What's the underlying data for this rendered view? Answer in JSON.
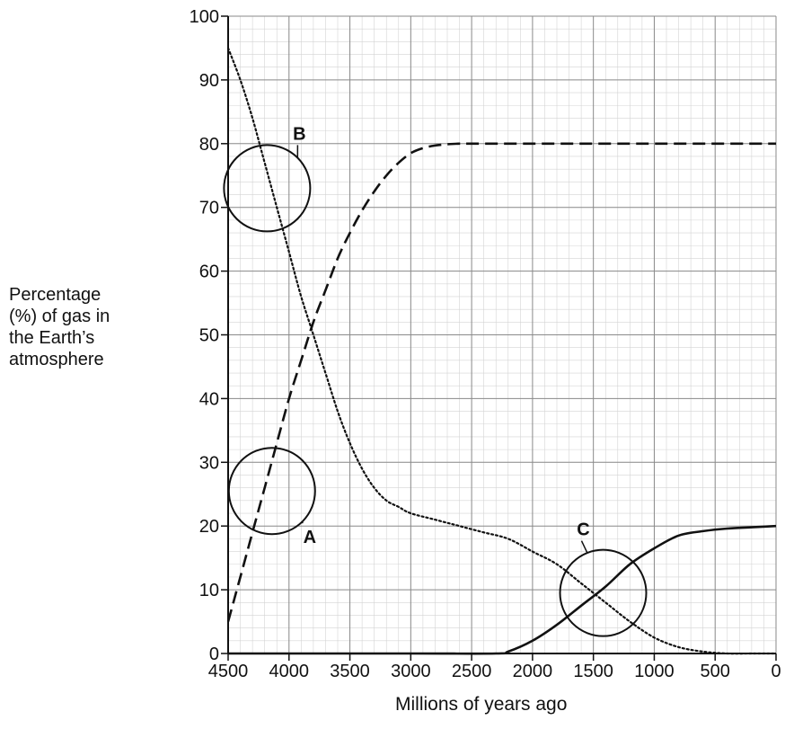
{
  "chart_data": {
    "type": "line",
    "xlabel": "Millions of years ago",
    "ylabel_lines": [
      "Percentage",
      "(%) of gas in",
      "the Earth’s",
      "atmosphere"
    ],
    "xlim": [
      4500,
      0
    ],
    "ylim": [
      0,
      100
    ],
    "x_ticks": [
      4500,
      4000,
      3500,
      3000,
      2500,
      2000,
      1500,
      1000,
      500,
      0
    ],
    "y_ticks": [
      0,
      10,
      20,
      30,
      40,
      50,
      60,
      70,
      80,
      90,
      100
    ],
    "grid": true,
    "series": [
      {
        "style": "dotted",
        "x": [
          4500,
          4400,
          4300,
          4200,
          4100,
          4000,
          3900,
          3800,
          3700,
          3600,
          3500,
          3400,
          3300,
          3200,
          3100,
          3000,
          2800,
          2600,
          2400,
          2200,
          2000,
          1800,
          1600,
          1400,
          1200,
          1000,
          800,
          600,
          400,
          200,
          0
        ],
        "y": [
          95,
          90,
          84,
          77,
          70,
          63,
          56,
          50,
          44,
          38,
          33,
          29,
          26,
          24,
          23,
          22,
          21,
          20,
          19,
          18,
          16,
          14,
          11,
          8,
          5,
          2.5,
          1,
          0.3,
          0,
          0,
          0
        ]
      },
      {
        "style": "dashed",
        "x": [
          4500,
          4400,
          4300,
          4200,
          4100,
          4000,
          3900,
          3800,
          3700,
          3600,
          3500,
          3400,
          3300,
          3200,
          3100,
          3000,
          2900,
          2800,
          2700,
          2600,
          2500,
          2000,
          1500,
          1000,
          500,
          0
        ],
        "y": [
          5,
          12,
          19,
          26,
          33,
          40,
          46,
          52,
          57,
          62,
          66,
          69.5,
          72.5,
          75,
          77,
          78.5,
          79.3,
          79.7,
          79.9,
          80,
          80,
          80,
          80,
          80,
          80,
          80
        ]
      },
      {
        "style": "solid",
        "x": [
          4500,
          3000,
          2300,
          2200,
          2000,
          1800,
          1600,
          1400,
          1200,
          1000,
          800,
          600,
          400,
          200,
          0
        ],
        "y": [
          0,
          0,
          0,
          0.3,
          2,
          4.5,
          7.5,
          10.5,
          14,
          16.5,
          18.5,
          19.2,
          19.6,
          19.8,
          20
        ]
      }
    ],
    "annotations": [
      {
        "label": "B",
        "circle": {
          "x": 4180,
          "y": 73
        }
      },
      {
        "label": "A",
        "circle": {
          "x": 4140,
          "y": 25.5
        }
      },
      {
        "label": "C",
        "circle": {
          "x": 1420,
          "y": 9.5
        }
      }
    ]
  }
}
